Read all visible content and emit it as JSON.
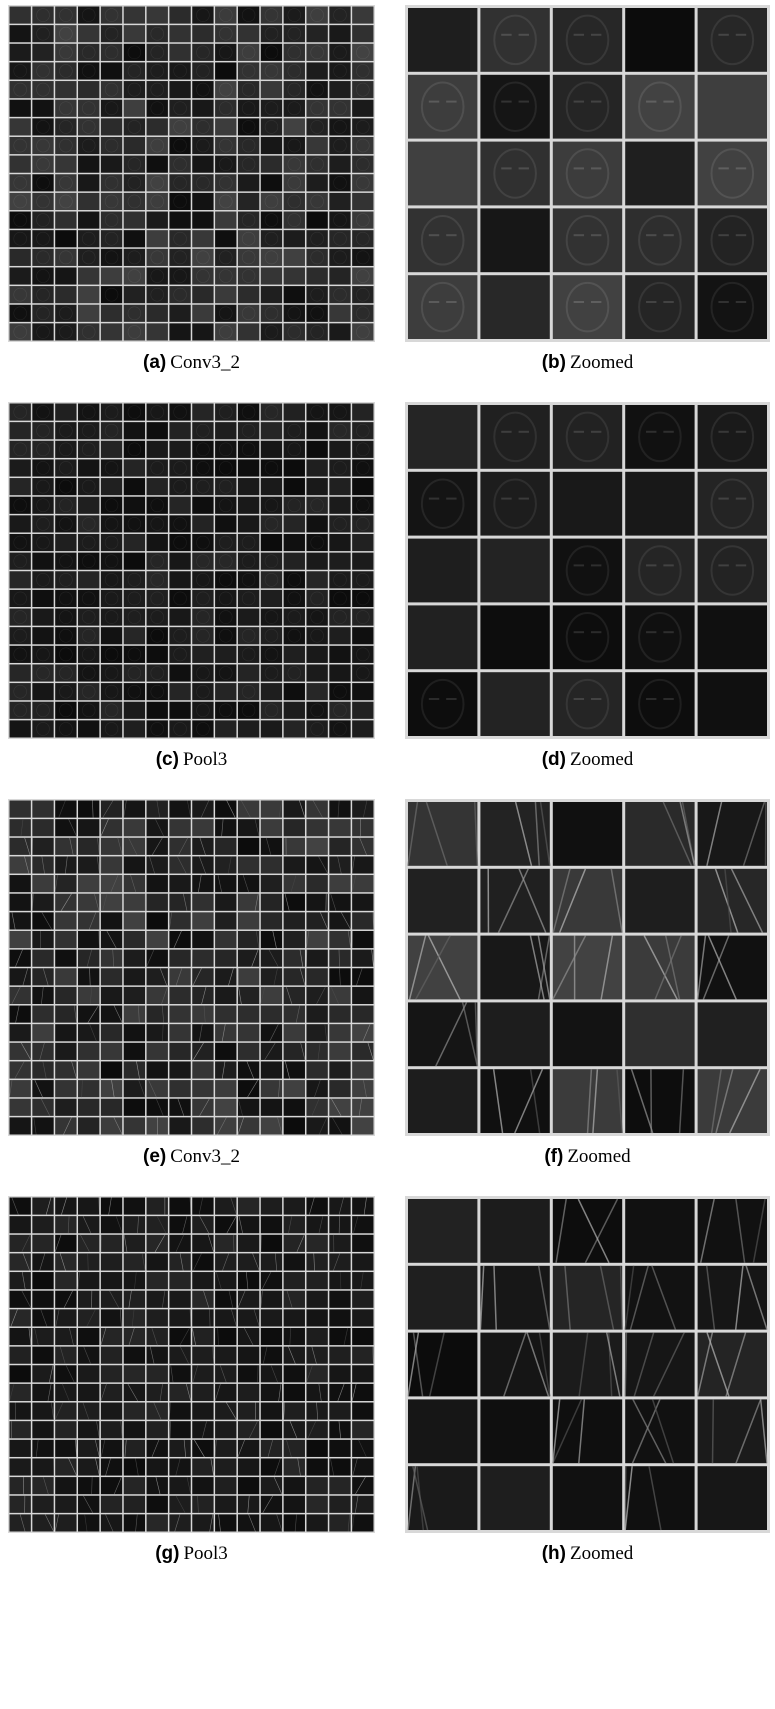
{
  "panels": [
    {
      "label": "(a)",
      "caption": "Conv3_2"
    },
    {
      "label": "(b)",
      "caption": "Zoomed"
    },
    {
      "label": "(c)",
      "caption": "Pool3"
    },
    {
      "label": "(d)",
      "caption": "Zoomed"
    },
    {
      "label": "(e)",
      "caption": "Conv3_2"
    },
    {
      "label": "(f)",
      "caption": "Zoomed"
    },
    {
      "label": "(g)",
      "caption": "Pool3"
    },
    {
      "label": "(h)",
      "caption": "Zoomed"
    }
  ]
}
